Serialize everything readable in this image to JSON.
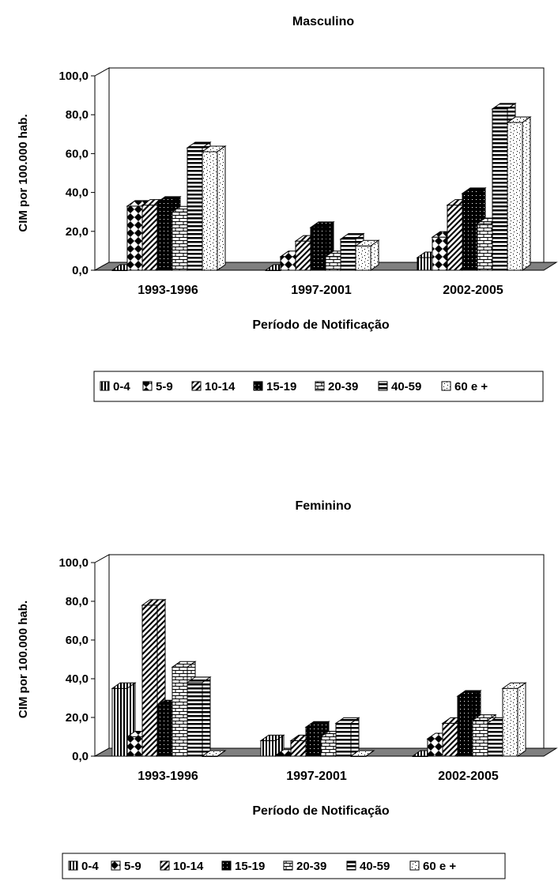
{
  "chart_data": [
    {
      "type": "bar",
      "title": "Masculino",
      "xlabel": "Período de Notificação",
      "ylabel": "CIM por 100.000 hab.",
      "ylim": [
        0,
        100
      ],
      "yticks": [
        "0,0",
        "20,0",
        "40,0",
        "60,0",
        "80,0",
        "100,0"
      ],
      "categories": [
        "1993-1996",
        "1997-2001",
        "2002-2005"
      ],
      "series": [
        {
          "name": "0-4",
          "values": [
            0.0,
            0.0,
            6.5
          ]
        },
        {
          "name": "5-9",
          "values": [
            33.0,
            7.0,
            17.0
          ]
        },
        {
          "name": "10-14",
          "values": [
            33.5,
            15.0,
            33.5
          ]
        },
        {
          "name": "15-19",
          "values": [
            35.0,
            22.0,
            39.5
          ]
        },
        {
          "name": "20-39",
          "values": [
            30.0,
            7.0,
            24.0
          ]
        },
        {
          "name": "40-59",
          "values": [
            63.0,
            16.0,
            83.0
          ]
        },
        {
          "name": "60 e +",
          "values": [
            61.0,
            12.5,
            76.0
          ]
        }
      ],
      "legend": "bottom",
      "grid": false
    },
    {
      "type": "bar",
      "title": "Feminino",
      "xlabel": "Período de Notificação",
      "ylabel": "CIM por 100.000 hab.",
      "ylim": [
        0,
        100
      ],
      "yticks": [
        "0,0",
        "20,0",
        "40,0",
        "60,0",
        "80,0",
        "100,0"
      ],
      "categories": [
        "1993-1996",
        "1997-2001",
        "2002-2005"
      ],
      "series": [
        {
          "name": "0-4",
          "values": [
            35.0,
            8.0,
            0.0
          ]
        },
        {
          "name": "5-9",
          "values": [
            10.0,
            0.5,
            9.0
          ]
        },
        {
          "name": "10-14",
          "values": [
            78.0,
            8.0,
            17.0
          ]
        },
        {
          "name": "15-19",
          "values": [
            26.0,
            15.0,
            31.0
          ]
        },
        {
          "name": "20-39",
          "values": [
            46.0,
            10.0,
            18.5
          ]
        },
        {
          "name": "40-59",
          "values": [
            38.0,
            17.0,
            17.0
          ]
        },
        {
          "name": "60 e +",
          "values": [
            0.0,
            0.0,
            35.0
          ]
        }
      ],
      "legend": "bottom",
      "grid": false
    }
  ]
}
